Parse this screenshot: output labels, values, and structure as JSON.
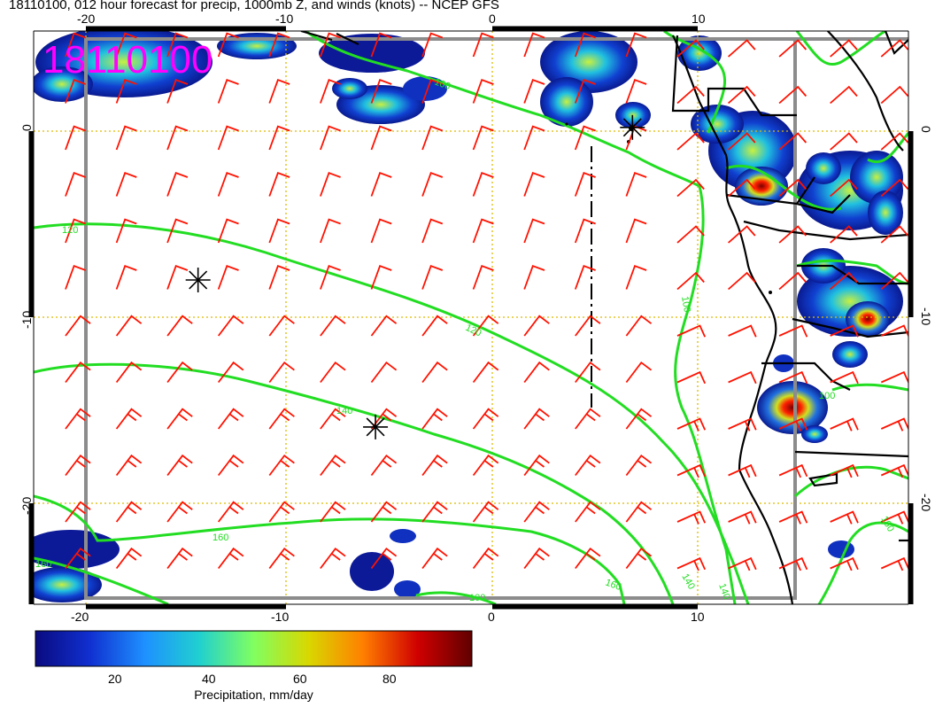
{
  "title": "18110100, 012 hour forecast for precip, 1000mb Z, and winds (knots) -- NCEP GFS",
  "stamp": "18110100",
  "axes": {
    "lon_top": [
      "-20",
      "-10",
      "0",
      "10"
    ],
    "lon_bottom": [
      "-20",
      "-10",
      "0",
      "10"
    ],
    "lat_left": [
      "0",
      "-10",
      "-20"
    ],
    "lat_right": [
      "0",
      "-10",
      "-20"
    ],
    "lon_range": [
      -22.5,
      21
    ],
    "lat_range": [
      -25.3,
      5.2
    ],
    "grid": "dotted, every 10 degrees"
  },
  "contours_label": "1000mb Z contours (green)",
  "contour_labels": [
    "120",
    "120",
    "140",
    "140",
    "160",
    "160",
    "160",
    "100",
    "100",
    "100",
    "140",
    "160",
    "100"
  ],
  "colorbar": {
    "title": "Precipitation, mm/day",
    "ticks": [
      "20",
      "40",
      "60",
      "80"
    ],
    "colors": [
      "#0a0a80",
      "#1030d0",
      "#1e90ff",
      "#20d0d0",
      "#80ff60",
      "#d8d800",
      "#ff8000",
      "#d00000",
      "#600000"
    ]
  },
  "markers": [
    {
      "label": "asterisk",
      "lon": -14.5,
      "lat": -8
    },
    {
      "label": "asterisk",
      "lon": -5.8,
      "lat": -15.9
    },
    {
      "label": "asterisk",
      "lon": 6.8,
      "lat": 0.2
    }
  ],
  "colors": {
    "contour": "#22dd22",
    "barb": "#ff0000",
    "coast": "#000000",
    "grid": "#ddbb00",
    "frame": "#8c8c8c"
  }
}
